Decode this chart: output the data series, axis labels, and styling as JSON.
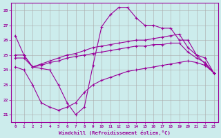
{
  "xlabel": "Windchill (Refroidissement éolien,°C)",
  "x": [
    0,
    1,
    2,
    3,
    4,
    5,
    6,
    7,
    8,
    9,
    10,
    11,
    12,
    13,
    14,
    15,
    16,
    17,
    18,
    19,
    20,
    21,
    22,
    23
  ],
  "line1": [
    26.3,
    25.0,
    24.2,
    24.1,
    24.0,
    23.0,
    21.8,
    21.0,
    21.5,
    24.3,
    26.9,
    27.7,
    28.2,
    28.2,
    27.5,
    27.0,
    27.0,
    26.8,
    26.8,
    26.0,
    26.0,
    25.0,
    24.4,
    23.8
  ],
  "line2": [
    25.0,
    25.0,
    24.2,
    24.4,
    24.6,
    24.8,
    25.0,
    25.1,
    25.3,
    25.5,
    25.6,
    25.7,
    25.8,
    25.9,
    26.0,
    26.0,
    26.1,
    26.2,
    26.3,
    26.4,
    25.5,
    25.0,
    24.8,
    23.8
  ],
  "line3": [
    24.8,
    24.8,
    24.2,
    24.3,
    24.5,
    24.6,
    24.8,
    24.9,
    25.0,
    25.1,
    25.2,
    25.3,
    25.4,
    25.5,
    25.6,
    25.6,
    25.7,
    25.7,
    25.8,
    25.8,
    25.2,
    24.8,
    24.5,
    23.8
  ],
  "line4": [
    24.2,
    24.0,
    23.0,
    21.8,
    21.5,
    21.3,
    21.5,
    21.8,
    22.5,
    23.0,
    23.3,
    23.5,
    23.7,
    23.9,
    24.0,
    24.1,
    24.2,
    24.3,
    24.4,
    24.5,
    24.6,
    24.5,
    24.3,
    23.8
  ],
  "ylim": [
    20.5,
    28.5
  ],
  "xlim": [
    -0.5,
    23.5
  ],
  "yticks": [
    21,
    22,
    23,
    24,
    25,
    26,
    27,
    28
  ],
  "xticks": [
    0,
    1,
    2,
    3,
    4,
    5,
    6,
    7,
    8,
    9,
    10,
    11,
    12,
    13,
    14,
    15,
    16,
    17,
    18,
    19,
    20,
    21,
    22,
    23
  ],
  "line_color": "#990099",
  "bg_color": "#ccecec",
  "grid_color": "#aaaaaa",
  "linewidth": 0.8,
  "markersize": 2.5
}
